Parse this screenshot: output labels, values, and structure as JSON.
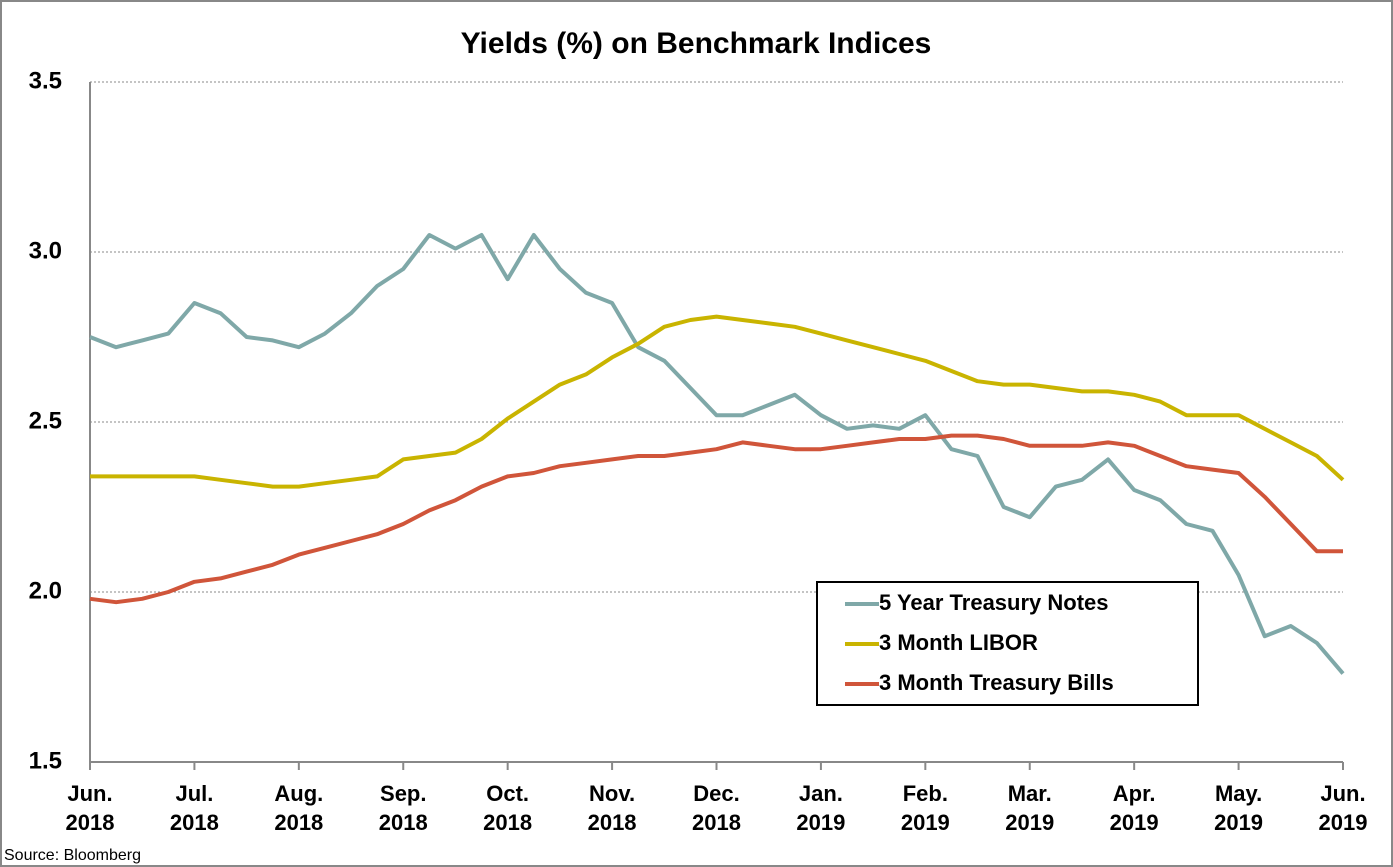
{
  "chart_data": {
    "type": "line",
    "title": "Yields (%) on Benchmark Indices",
    "source": "Source: Bloomberg",
    "x": [
      0,
      0.25,
      0.5,
      0.75,
      1,
      1.25,
      1.5,
      1.75,
      2,
      2.25,
      2.5,
      2.75,
      3,
      3.25,
      3.5,
      3.75,
      4,
      4.25,
      4.5,
      4.75,
      5,
      5.25,
      5.5,
      5.75,
      6,
      6.25,
      6.5,
      6.75,
      7,
      7.25,
      7.5,
      7.75,
      8,
      8.25,
      8.5,
      8.75,
      9,
      9.25,
      9.5,
      9.75,
      10,
      10.25,
      10.5,
      10.75,
      11,
      11.25,
      11.5,
      11.75,
      12
    ],
    "series": [
      {
        "name": "5 Year Treasury Notes",
        "color": "#7fa8a8",
        "values": [
          2.75,
          2.72,
          2.74,
          2.76,
          2.85,
          2.82,
          2.75,
          2.74,
          2.72,
          2.76,
          2.82,
          2.9,
          2.95,
          3.05,
          3.01,
          3.05,
          2.92,
          3.05,
          2.95,
          2.88,
          2.85,
          2.72,
          2.68,
          2.6,
          2.52,
          2.52,
          2.55,
          2.58,
          2.52,
          2.48,
          2.49,
          2.48,
          2.52,
          2.42,
          2.4,
          2.25,
          2.22,
          2.31,
          2.33,
          2.39,
          2.3,
          2.27,
          2.2,
          2.18,
          2.05,
          1.87,
          1.9,
          1.85,
          1.76
        ]
      },
      {
        "name": "3 Month LIBOR",
        "color": "#c9b400",
        "values": [
          2.34,
          2.34,
          2.34,
          2.34,
          2.34,
          2.33,
          2.32,
          2.31,
          2.31,
          2.32,
          2.33,
          2.34,
          2.39,
          2.4,
          2.41,
          2.45,
          2.51,
          2.56,
          2.61,
          2.64,
          2.69,
          2.73,
          2.78,
          2.8,
          2.81,
          2.8,
          2.79,
          2.78,
          2.76,
          2.74,
          2.72,
          2.7,
          2.68,
          2.65,
          2.62,
          2.61,
          2.61,
          2.6,
          2.59,
          2.59,
          2.58,
          2.56,
          2.52,
          2.52,
          2.52,
          2.48,
          2.44,
          2.4,
          2.33
        ]
      },
      {
        "name": "3 Month Treasury Bills",
        "color": "#d0553a",
        "values": [
          1.98,
          1.97,
          1.98,
          2.0,
          2.03,
          2.04,
          2.06,
          2.08,
          2.11,
          2.13,
          2.15,
          2.17,
          2.2,
          2.24,
          2.27,
          2.31,
          2.34,
          2.35,
          2.37,
          2.38,
          2.39,
          2.4,
          2.4,
          2.41,
          2.42,
          2.44,
          2.43,
          2.42,
          2.42,
          2.43,
          2.44,
          2.45,
          2.45,
          2.46,
          2.46,
          2.45,
          2.43,
          2.43,
          2.43,
          2.44,
          2.43,
          2.4,
          2.37,
          2.36,
          2.35,
          2.28,
          2.2,
          2.12,
          2.12
        ]
      }
    ],
    "xlim": [
      0,
      12
    ],
    "xticks": [
      {
        "value": 0,
        "label": "Jun.\n2018"
      },
      {
        "value": 1,
        "label": "Jul.\n2018"
      },
      {
        "value": 2,
        "label": "Aug.\n2018"
      },
      {
        "value": 3,
        "label": "Sep.\n2018"
      },
      {
        "value": 4,
        "label": "Oct.\n2018"
      },
      {
        "value": 5,
        "label": "Nov.\n2018"
      },
      {
        "value": 6,
        "label": "Dec.\n2018"
      },
      {
        "value": 7,
        "label": "Jan.\n2019"
      },
      {
        "value": 8,
        "label": "Feb.\n2019"
      },
      {
        "value": 9,
        "label": "Mar.\n2019"
      },
      {
        "value": 10,
        "label": "Apr.\n2019"
      },
      {
        "value": 11,
        "label": "May.\n2019"
      },
      {
        "value": 12,
        "label": "Jun.\n2019"
      }
    ],
    "ylim": [
      1.5,
      3.5
    ],
    "yticks": [
      {
        "value": 1.5,
        "label": "1.5"
      },
      {
        "value": 2,
        "label": "2.0"
      },
      {
        "value": 2.5,
        "label": "2.5"
      },
      {
        "value": 3,
        "label": "3.0"
      },
      {
        "value": 3.5,
        "label": "3.5"
      }
    ],
    "grid": true,
    "legend": "lower right"
  }
}
